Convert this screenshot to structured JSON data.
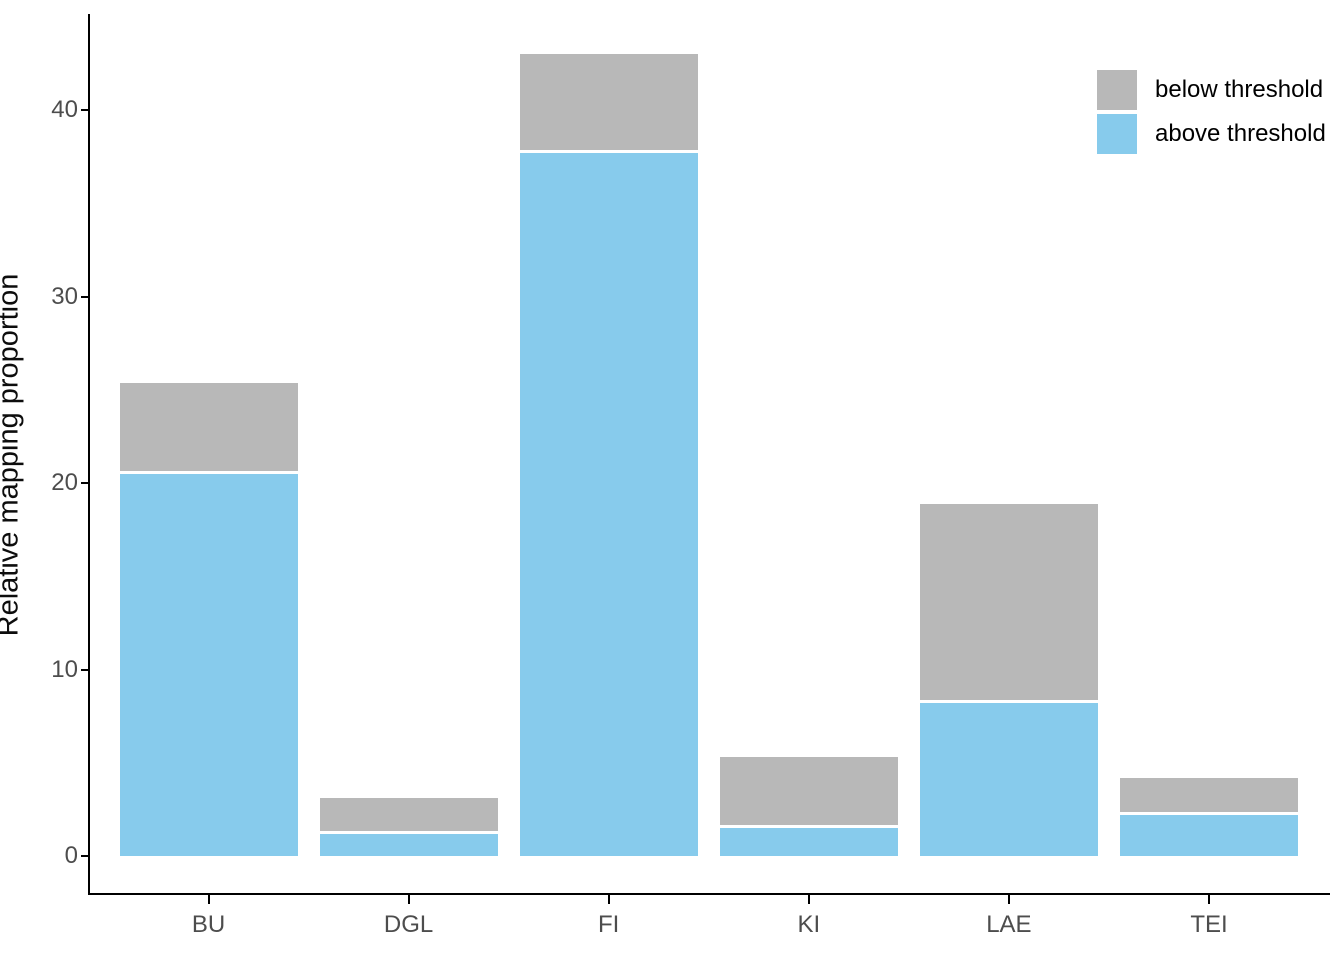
{
  "chart_data": {
    "type": "bar",
    "stacked": true,
    "title": "",
    "xlabel": "",
    "ylabel": "Relative mapping proportion",
    "categories": [
      "BU",
      "DGL",
      "FI",
      "KI",
      "LAE",
      "TEI"
    ],
    "series": [
      {
        "name": "above threshold",
        "color": "#87cbec",
        "values": [
          20.5,
          1.2,
          37.7,
          1.5,
          8.2,
          2.2
        ]
      },
      {
        "name": "below threshold",
        "color": "#b8b8b8",
        "values": [
          4.9,
          1.9,
          5.3,
          3.8,
          10.7,
          2.0
        ]
      }
    ],
    "totals": [
      25.4,
      3.1,
      43.0,
      5.3,
      18.9,
      4.2
    ],
    "ylim": [
      0,
      45
    ],
    "yticks": [
      0,
      10,
      20,
      30,
      40
    ],
    "grid": false,
    "legend_position": "top-right",
    "bar_outline_color": "#ffffff"
  },
  "legend": {
    "items": [
      {
        "label": "below threshold",
        "color": "#b8b8b8"
      },
      {
        "label": "above threshold",
        "color": "#87cbec"
      }
    ]
  }
}
